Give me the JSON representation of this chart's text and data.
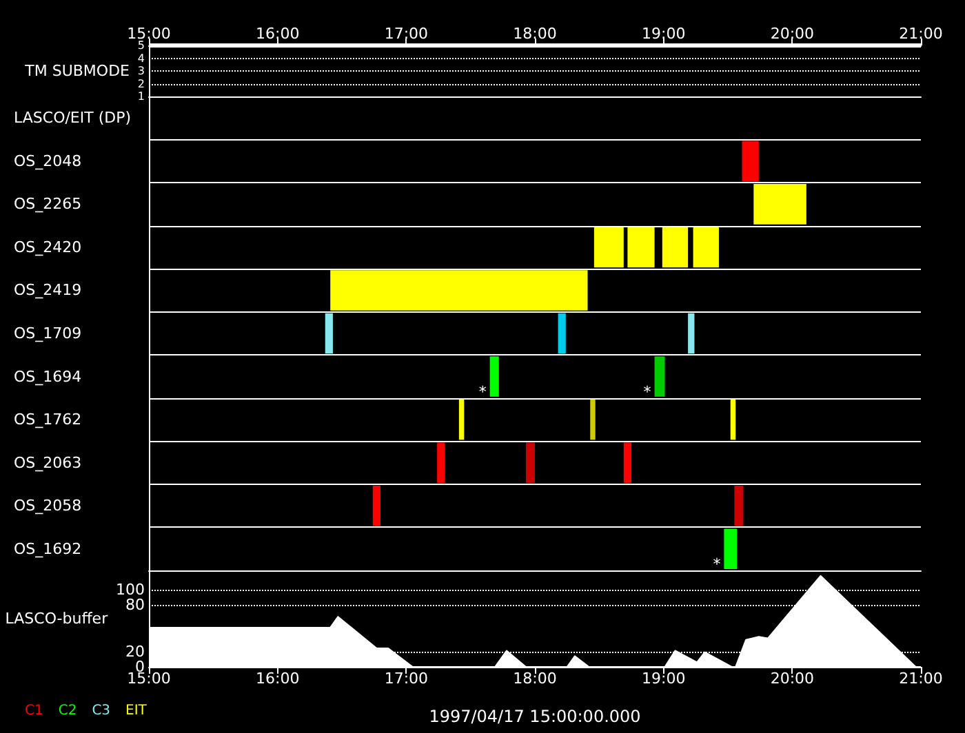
{
  "chart_data": [
    {
      "type": "line",
      "ylabel": "TM SUBMODE",
      "x": [
        15,
        21
      ],
      "series": [
        {
          "color": "#ffffff",
          "values": [
            5,
            5
          ]
        }
      ],
      "xlim": [
        15,
        21
      ],
      "xticks": [
        {
          "value": 15,
          "label": "15:00"
        },
        {
          "value": 16,
          "label": "16:00"
        },
        {
          "value": 17,
          "label": "17:00"
        },
        {
          "value": 18,
          "label": "18:00"
        },
        {
          "value": 19,
          "label": "19:00"
        },
        {
          "value": 20,
          "label": "20:00"
        },
        {
          "value": 21,
          "label": "21:00"
        }
      ],
      "ylim": [
        1,
        5
      ],
      "yticks": [
        1,
        2,
        3,
        4,
        5
      ],
      "grid": "y",
      "marker": "none"
    },
    {
      "type": "bar",
      "orientation": "horizontal",
      "categories": [
        "LASCO/EIT (DP)",
        "OS_2048",
        "OS_2265",
        "OS_2420",
        "OS_2419",
        "OS_1709",
        "OS_1694",
        "OS_1762",
        "OS_2063",
        "OS_2058",
        "OS_1692"
      ],
      "series": [
        {
          "name": "C1",
          "color": "#ff0000",
          "base": [
            null,
            19.61,
            null,
            null,
            null,
            null,
            null,
            null,
            17.24,
            16.74,
            null
          ],
          "values": [
            null,
            0.13,
            null,
            null,
            null,
            null,
            null,
            null,
            0.06,
            0.06,
            null
          ]
        },
        {
          "color": "#cc0000",
          "base": [
            null,
            null,
            null,
            null,
            null,
            null,
            null,
            null,
            17.93,
            19.55,
            null
          ],
          "values": [
            null,
            null,
            null,
            null,
            null,
            null,
            null,
            null,
            0.07,
            0.07,
            null
          ]
        },
        {
          "color": "#ff0000",
          "base": [
            null,
            null,
            null,
            null,
            null,
            null,
            null,
            null,
            18.69,
            null,
            null
          ],
          "values": [
            null,
            null,
            null,
            null,
            null,
            null,
            null,
            null,
            0.06,
            null,
            null
          ]
        },
        {
          "name": "C2",
          "color": "#00ff00",
          "base": [
            null,
            null,
            null,
            null,
            null,
            null,
            17.65,
            null,
            null,
            null,
            19.47
          ],
          "values": [
            null,
            null,
            null,
            null,
            null,
            null,
            0.07,
            null,
            null,
            null,
            0.1
          ]
        },
        {
          "color": "#00cc00",
          "base": [
            null,
            null,
            null,
            null,
            null,
            null,
            18.93,
            null,
            null,
            null,
            null
          ],
          "values": [
            null,
            null,
            null,
            null,
            null,
            null,
            0.08,
            null,
            null,
            null,
            null
          ]
        },
        {
          "name": "C3",
          "color": "#88e8f0",
          "base": [
            null,
            null,
            null,
            null,
            null,
            16.37,
            null,
            null,
            null,
            null,
            null
          ],
          "values": [
            null,
            null,
            null,
            null,
            null,
            0.06,
            null,
            null,
            null,
            null,
            null
          ]
        },
        {
          "color": "#00ccee",
          "base": [
            null,
            null,
            null,
            null,
            null,
            18.18,
            null,
            null,
            null,
            null,
            null
          ],
          "values": [
            null,
            null,
            null,
            null,
            null,
            0.06,
            null,
            null,
            null,
            null,
            null
          ]
        },
        {
          "color": "#88e8f0",
          "base": [
            null,
            null,
            null,
            null,
            null,
            19.19,
            null,
            null,
            null,
            null,
            null
          ],
          "values": [
            null,
            null,
            null,
            null,
            null,
            0.05,
            null,
            null,
            null,
            null,
            null
          ]
        },
        {
          "name": "EIT",
          "color": "#ffff00",
          "base": [
            null,
            null,
            19.7,
            18.46,
            16.41,
            null,
            null,
            17.41,
            null,
            null,
            null
          ],
          "values": [
            null,
            null,
            0.41,
            0.23,
            2.0,
            null,
            null,
            0.04,
            null,
            null,
            null
          ]
        },
        {
          "color": "#ffff00",
          "base": [
            null,
            null,
            null,
            18.72,
            null,
            null,
            null,
            18.43,
            null,
            null,
            null
          ],
          "values": [
            null,
            null,
            null,
            0.21,
            null,
            null,
            null,
            0.04,
            null,
            null,
            null
          ],
          "colors": [
            null,
            null,
            null,
            "#ffff00",
            null,
            null,
            null,
            "#cccc00",
            null,
            null,
            null
          ]
        },
        {
          "color": "#ffff00",
          "base": [
            null,
            null,
            null,
            18.99,
            null,
            null,
            null,
            19.52,
            null,
            null,
            null
          ],
          "values": [
            null,
            null,
            null,
            0.2,
            null,
            null,
            null,
            0.04,
            null,
            null,
            null
          ]
        },
        {
          "color": "#ffff00",
          "base": [
            null,
            null,
            null,
            19.23,
            null,
            null,
            null,
            null,
            null,
            null,
            null
          ],
          "values": [
            null,
            null,
            null,
            0.2,
            null,
            null,
            null,
            null,
            null,
            null,
            null
          ]
        }
      ],
      "xlim": [
        15,
        21
      ],
      "tick_labels": "y",
      "grid": "y",
      "legend": "bottom left",
      "annotations": [
        {
          "text": "*",
          "x": 17.65,
          "y": "OS_1694"
        },
        {
          "text": "*",
          "x": 18.93,
          "y": "OS_1694"
        },
        {
          "text": "*",
          "x": 19.47,
          "y": "OS_1692"
        }
      ]
    },
    {
      "type": "area",
      "ylabel": "LASCO-buffer",
      "xlabel": "1997/04/17 15:00:00.000",
      "x": [
        15,
        16.41,
        16.47,
        16.77,
        16.86,
        17.05,
        17.69,
        17.78,
        17.93,
        18.25,
        18.31,
        18.42,
        19.01,
        19.09,
        19.26,
        19.32,
        19.53,
        19.56,
        19.64,
        19.74,
        19.81,
        20.22,
        20.96,
        21
      ],
      "series": [
        {
          "color": "#ffffff",
          "values": [
            51,
            51,
            65,
            24,
            24,
            0,
            0,
            21,
            0,
            0,
            14,
            0,
            0,
            21,
            6,
            19,
            0,
            0,
            35,
            39,
            37,
            118,
            0,
            0
          ]
        }
      ],
      "xlim": [
        15,
        21
      ],
      "xticks": [
        {
          "value": 15,
          "label": "15:00"
        },
        {
          "value": 16,
          "label": "16:00"
        },
        {
          "value": 17,
          "label": "17:00"
        },
        {
          "value": 18,
          "label": "18:00"
        },
        {
          "value": 19,
          "label": "19:00"
        },
        {
          "value": 20,
          "label": "20:00"
        },
        {
          "value": 21,
          "label": "21:00"
        }
      ],
      "ylim": [
        0,
        125
      ],
      "yticks": [
        0,
        20,
        80,
        100
      ],
      "grid": "y",
      "marker": "none"
    }
  ]
}
